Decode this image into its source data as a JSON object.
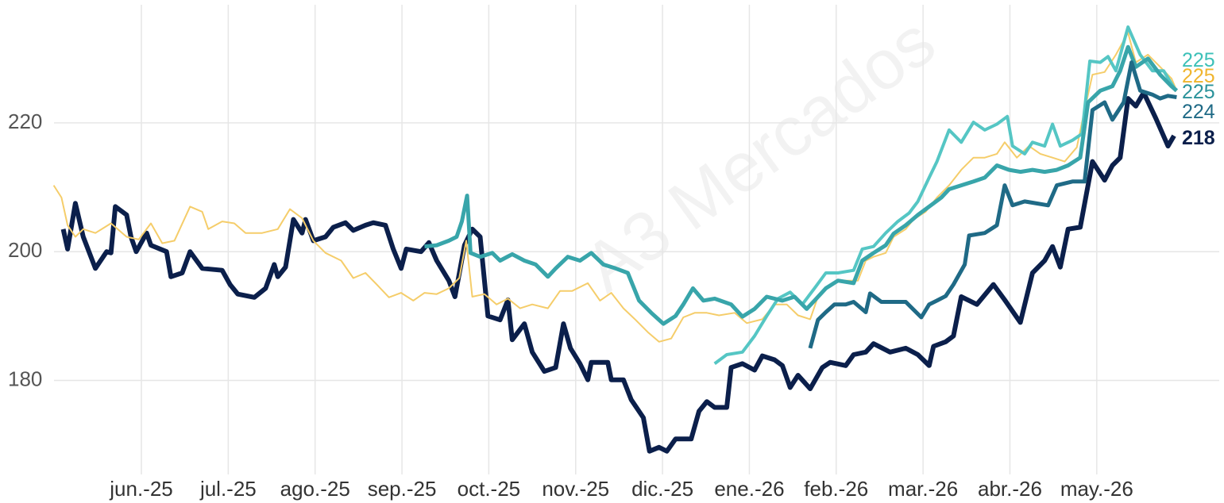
{
  "chart_data": {
    "type": "line",
    "watermark": "A3 Mercados",
    "xlim": [
      -0.5,
      13.41
    ],
    "ylim": [
      166.5,
      238.6
    ],
    "xticks": [
      {
        "value": 1,
        "label": "jun.-25"
      },
      {
        "value": 2,
        "label": "jul.-25"
      },
      {
        "value": 3,
        "label": "ago.-25"
      },
      {
        "value": 4,
        "label": "sep.-25"
      },
      {
        "value": 5,
        "label": "oct.-25"
      },
      {
        "value": 6,
        "label": "nov.-25"
      },
      {
        "value": 7,
        "label": "dic.-25"
      },
      {
        "value": 8,
        "label": "ene.-26"
      },
      {
        "value": 9,
        "label": "feb.-26"
      },
      {
        "value": 10,
        "label": "mar.-26"
      },
      {
        "value": 11,
        "label": "abr.-26"
      },
      {
        "value": 12,
        "label": "may.-26"
      }
    ],
    "yticks": [
      180,
      200,
      220
    ],
    "grid": true,
    "series": [
      {
        "color": "#0b1f4b",
        "width": 6,
        "x": [
          0.1,
          0.15,
          0.24,
          0.33,
          0.47,
          0.6,
          0.65,
          0.7,
          0.83,
          0.88,
          0.94,
          1.06,
          1.11,
          1.29,
          1.34,
          1.47,
          1.56,
          1.7,
          1.93,
          2.02,
          2.11,
          2.3,
          2.43,
          2.53,
          2.57,
          2.66,
          2.75,
          2.85,
          2.89,
          2.98,
          3.12,
          3.21,
          3.35,
          3.44,
          3.58,
          3.67,
          3.81,
          3.9,
          3.99,
          4.05,
          4.22,
          4.31,
          4.4,
          4.54,
          4.61,
          4.72,
          4.81,
          4.9,
          4.99,
          5.13,
          5.22,
          5.27,
          5.41,
          5.5,
          5.64,
          5.77,
          5.86,
          5.94,
          6.05,
          6.14,
          6.18,
          6.37,
          6.41,
          6.55,
          6.64,
          6.78,
          6.85,
          6.96,
          7.05,
          7.15,
          7.33,
          7.42,
          7.51,
          7.6,
          7.74,
          7.79,
          7.92,
          8.06,
          8.15,
          8.29,
          8.38,
          8.47,
          8.56,
          8.7,
          8.84,
          8.93,
          9.11,
          9.2,
          9.34,
          9.43,
          9.62,
          9.8,
          9.94,
          10.07,
          10.12,
          10.26,
          10.35,
          10.44,
          10.62,
          10.81,
          10.94,
          11.12,
          11.26,
          11.4,
          11.49,
          11.58,
          11.67,
          11.81,
          11.95,
          12.09,
          12.18,
          12.27,
          12.36,
          12.45,
          12.54,
          12.68,
          12.82,
          12.89
        ],
        "values": [
          203.5,
          200.4,
          207.5,
          202.3,
          197.4,
          200,
          199.8,
          207,
          205.7,
          202.3,
          200,
          202.9,
          201,
          200,
          196.1,
          196.7,
          200,
          197.4,
          197.1,
          194.9,
          193.4,
          192.9,
          194.3,
          198,
          196.1,
          197.6,
          205,
          202.9,
          205,
          201.7,
          202.3,
          203.8,
          204.5,
          203.3,
          204.1,
          204.5,
          204.1,
          200.4,
          197.4,
          200.4,
          200,
          201.4,
          198.6,
          195.5,
          193,
          201,
          203.5,
          202.3,
          190,
          189.4,
          192.5,
          186.3,
          188.8,
          184.4,
          181.4,
          182,
          188.8,
          185,
          182.6,
          180.1,
          182.8,
          182.8,
          180.1,
          180.1,
          177,
          174.2,
          169,
          169.6,
          169,
          170.9,
          170.9,
          175.2,
          176.7,
          175.8,
          175.8,
          182,
          182.6,
          181.6,
          183.8,
          183.2,
          182.3,
          178.9,
          180.8,
          178.7,
          182,
          182.8,
          182.3,
          184,
          184.4,
          185.7,
          184.4,
          185,
          184,
          182.3,
          185.3,
          186,
          186.9,
          193,
          191.8,
          194.9,
          192.5,
          189,
          196.7,
          198.6,
          200.8,
          197.6,
          203.5,
          203.8,
          214,
          211.1,
          213.4,
          214.6,
          223.8,
          222.6,
          224.7,
          220.7,
          216.4,
          218
        ]
      },
      {
        "color": "#f5cd6a",
        "label_color": "#f0b52e",
        "width": 2,
        "x": [
          -0.01,
          0.08,
          0.15,
          0.24,
          0.33,
          0.47,
          0.65,
          0.83,
          0.97,
          1.11,
          1.24,
          1.38,
          1.56,
          1.7,
          1.77,
          1.93,
          2.07,
          2.2,
          2.39,
          2.57,
          2.71,
          2.85,
          2.98,
          3.12,
          3.3,
          3.44,
          3.58,
          3.71,
          3.85,
          3.99,
          4.13,
          4.26,
          4.4,
          4.54,
          4.66,
          4.74,
          4.81,
          4.95,
          5.09,
          5.22,
          5.36,
          5.5,
          5.68,
          5.82,
          5.96,
          6.14,
          6.28,
          6.41,
          6.55,
          6.69,
          6.83,
          6.96,
          7.1,
          7.24,
          7.37,
          7.51,
          7.65,
          7.83,
          7.97,
          8.15,
          8.29,
          8.43,
          8.56,
          8.7,
          8.79,
          8.93,
          9.07,
          9.25,
          9.34,
          9.43,
          9.57,
          9.66,
          9.8,
          9.89,
          10.03,
          10.16,
          10.3,
          10.44,
          10.58,
          10.71,
          10.85,
          10.94,
          11.08,
          11.22,
          11.35,
          11.49,
          11.63,
          11.77,
          11.86,
          11.95,
          12.09,
          12.22,
          12.36,
          12.45,
          12.59,
          12.73,
          12.86,
          12.92
        ],
        "values": [
          210.3,
          208.4,
          204.1,
          202.3,
          203.5,
          202.9,
          204.4,
          202.3,
          201.9,
          204.4,
          201.3,
          201.7,
          207,
          206.2,
          203.5,
          204.7,
          204.4,
          202.9,
          202.9,
          203.5,
          206.6,
          205.2,
          201.7,
          199.8,
          198.6,
          195.9,
          196.7,
          194.9,
          192.9,
          193.6,
          192.4,
          193.6,
          193.4,
          194.3,
          195.9,
          201.7,
          193,
          193.4,
          191.8,
          192.7,
          191.2,
          191.8,
          191.2,
          193.9,
          193.9,
          195.1,
          192.4,
          193.6,
          191.2,
          189.4,
          187.5,
          186,
          186.5,
          189.8,
          190.5,
          190.5,
          190.1,
          190.5,
          188.9,
          189.5,
          191.8,
          191.8,
          190.1,
          189.5,
          193,
          194.9,
          195.5,
          195.5,
          198.6,
          199.2,
          199.8,
          202.3,
          203.5,
          205,
          206.2,
          208.4,
          210.3,
          212.7,
          214.6,
          214.6,
          215.2,
          217,
          214.6,
          216.4,
          215.2,
          214.6,
          214,
          216.2,
          222,
          227.5,
          227.9,
          230.6,
          234,
          229.4,
          230.6,
          228.7,
          226.9,
          225
        ]
      },
      {
        "color": "#55c6c4",
        "label_color": "#3cc0b8",
        "width": 4,
        "x": [
          7.6,
          7.74,
          7.92,
          8.06,
          8.2,
          8.33,
          8.47,
          8.61,
          8.75,
          8.88,
          9.02,
          9.2,
          9.3,
          9.43,
          9.57,
          9.71,
          9.84,
          9.94,
          10.07,
          10.16,
          10.3,
          10.44,
          10.58,
          10.71,
          10.85,
          10.97,
          11.03,
          11.17,
          11.26,
          11.4,
          11.49,
          11.58,
          11.72,
          11.83,
          11.92,
          12.04,
          12.13,
          12.22,
          12.36,
          12.5,
          12.64,
          12.77,
          12.91
        ],
        "values": [
          182.6,
          184,
          184.4,
          186.9,
          190,
          192.7,
          193.7,
          191.8,
          194.3,
          196.7,
          196.7,
          197.1,
          200.4,
          200.8,
          202.9,
          204.7,
          206,
          207.8,
          211.5,
          214,
          218.9,
          217,
          220.1,
          218.9,
          219.8,
          221,
          216.4,
          215.2,
          217,
          216.4,
          219.8,
          216.4,
          217.3,
          218.3,
          229.6,
          229.4,
          230.3,
          228.1,
          234.9,
          230.6,
          228.1,
          228.1,
          225
        ]
      },
      {
        "color": "#38a5aa",
        "label_color": "#2a929a",
        "width": 5,
        "x": [
          4.26,
          4.4,
          4.54,
          4.63,
          4.69,
          4.75,
          4.79,
          4.9,
          5.04,
          5.13,
          5.27,
          5.41,
          5.54,
          5.68,
          5.77,
          5.91,
          6.05,
          6.18,
          6.32,
          6.46,
          6.6,
          6.73,
          6.87,
          7.01,
          7.15,
          7.24,
          7.35,
          7.47,
          7.6,
          7.79,
          7.92,
          8.06,
          8.2,
          8.38,
          8.52,
          8.66,
          8.75,
          8.88,
          9.02,
          9.2,
          9.3,
          9.43,
          9.57,
          9.66,
          9.8,
          9.94,
          10.07,
          10.21,
          10.3,
          10.44,
          10.58,
          10.71,
          10.85,
          10.99,
          11.12,
          11.26,
          11.4,
          11.54,
          11.67,
          11.81,
          11.9,
          12.04,
          12.18,
          12.27,
          12.36,
          12.45,
          12.59,
          12.73,
          12.86,
          12.92
        ],
        "values": [
          200.8,
          201,
          201.7,
          202.3,
          204.7,
          208.7,
          199.8,
          199.2,
          199.8,
          198.6,
          199.6,
          198.6,
          198,
          196.1,
          197.4,
          199.2,
          198.6,
          199.8,
          198,
          197.4,
          196.7,
          192.4,
          190.5,
          188.8,
          190,
          191.8,
          194.3,
          192.4,
          192.7,
          191.8,
          189.9,
          191.1,
          193,
          192.4,
          193,
          191.1,
          192.4,
          194.3,
          195.5,
          195.1,
          198.6,
          199.8,
          201,
          202.8,
          204.1,
          205.7,
          207,
          208.4,
          209.7,
          210.3,
          210.9,
          211.5,
          213.4,
          212.7,
          212.4,
          212.7,
          212.4,
          212.7,
          213.4,
          214.6,
          223.2,
          225,
          225.7,
          228.1,
          231.8,
          228.7,
          230,
          227.5,
          225.7,
          225
        ]
      },
      {
        "color": "#1f6a86",
        "label_color": "#1f6a86",
        "width": 5,
        "x": [
          8.7,
          8.79,
          8.88,
          8.98,
          9.11,
          9.2,
          9.34,
          9.39,
          9.52,
          9.8,
          9.98,
          10.07,
          10.16,
          10.26,
          10.35,
          10.48,
          10.53,
          10.71,
          10.85,
          10.94,
          11.03,
          11.17,
          11.26,
          11.44,
          11.54,
          11.72,
          11.86,
          11.95,
          12.09,
          12.18,
          12.31,
          12.4,
          12.5,
          12.64,
          12.73,
          12.82,
          12.92
        ],
        "values": [
          185,
          189.4,
          190.6,
          191.8,
          191.8,
          192.2,
          190.6,
          193.5,
          192.2,
          192.2,
          189.8,
          191.8,
          192.4,
          193.1,
          194.9,
          198,
          202.5,
          202.9,
          204.1,
          210.3,
          207.2,
          207.8,
          207.6,
          207.2,
          210.3,
          210.9,
          210.9,
          222,
          223.2,
          220.5,
          223.2,
          229.4,
          225,
          224.4,
          223.8,
          224.2,
          224
        ]
      }
    ]
  }
}
